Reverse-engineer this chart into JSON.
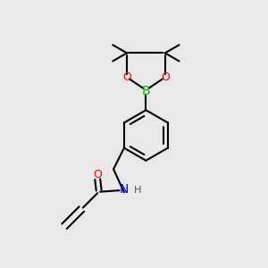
{
  "bg_color": "#e8e8e8",
  "line_color": "#000000",
  "atom_colors": {
    "O": "#ff0000",
    "B": "#00bb00",
    "N": "#0000ff",
    "H_color": "#555555"
  },
  "line_width": 1.5,
  "font_size": 9,
  "figsize": [
    3.0,
    3.0
  ],
  "dpi": 100
}
